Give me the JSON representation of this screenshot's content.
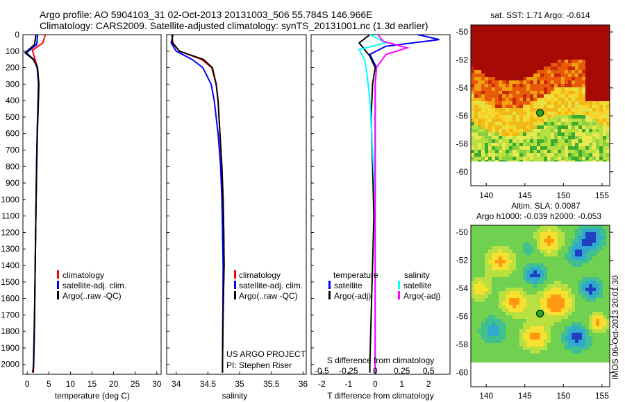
{
  "titles": {
    "line1": "Argo profile: AO 5904103_31 02-Oct-2013 20131003_506 55.784S 146.966E",
    "line2": "Climatology: CARS2009. Satellite-adjusted climatology: synTS_20131001.nc (1.3d earlier)"
  },
  "colors": {
    "climatology": "#ff0000",
    "satellite": "#0000ff",
    "argo": "#000000",
    "sat_salinity": "#00ffff",
    "argo_salinity": "#ff00ff",
    "marker": "#22aa22"
  },
  "depth_ticks": [
    "0",
    "100",
    "200",
    "300",
    "400",
    "500",
    "600",
    "700",
    "800",
    "900",
    "1000",
    "1100",
    "1200",
    "1300",
    "1400",
    "1500",
    "1600",
    "1700",
    "1800",
    "1900",
    "2000"
  ],
  "panel_temp": {
    "xlabel": "temperature (deg C)",
    "xticks": [
      "0",
      "5",
      "10",
      "15",
      "20",
      "25",
      "30"
    ],
    "legend": [
      "climatology",
      "satellite-adj. clim.",
      "Argo(..raw -QC)"
    ]
  },
  "panel_sal": {
    "xlabel": "salinity",
    "xticks": [
      "34",
      "34.5",
      "35",
      "35.5",
      "36"
    ],
    "legend": [
      "climatology",
      "satellite-adj. clim.",
      "Argo(..raw -QC)"
    ],
    "credit1": "US ARGO PROJECT",
    "credit2": "PI: Stephen Riser"
  },
  "panel_diff": {
    "xlabel": "T difference from climatology",
    "top_label": "S difference from climatology",
    "xticks_T": [
      "-2",
      "-1",
      "0",
      "1",
      "2"
    ],
    "xticks_S": [
      "-0.5",
      "-0.25",
      "0",
      "0.25",
      "0.5"
    ],
    "legend_left_title": "temperature",
    "legend_right_title": "salinity",
    "legend": [
      "satellite",
      "Argo(-adj)",
      "satellite",
      "Argo(-adj)"
    ]
  },
  "map_sst": {
    "title": "sat. SST: 1.71  Argo: -0.614",
    "yticks": [
      "-50",
      "-52",
      "-54",
      "-56",
      "-58",
      "-60"
    ],
    "xticks": [
      "140",
      "145",
      "150",
      "155"
    ]
  },
  "map_sla": {
    "title1": "Altim. SLA: 0.0087",
    "title2": "Argo h1000: -0.039  h2000: -0.053",
    "yticks": [
      "-50",
      "-52",
      "-54",
      "-56",
      "-58",
      "-60"
    ],
    "xticks": [
      "140",
      "145",
      "150",
      "155"
    ],
    "side_text": "IMOS 06-Oct-2013 20:01:30"
  },
  "chart_data": [
    {
      "type": "line",
      "panel": "temperature",
      "xlabel": "temperature (deg C)",
      "ylim": [
        2060,
        0
      ],
      "xlim": [
        -1,
        31
      ],
      "series": [
        {
          "name": "climatology",
          "x": [
            4.2,
            3.6,
            1.2,
            1.8,
            2.4,
            2.6,
            2.5,
            2.3,
            2.15,
            2.05,
            1.95,
            1.85,
            1.75,
            1.65,
            1.5,
            1.2
          ],
          "y": [
            0,
            50,
            95,
            150,
            200,
            300,
            400,
            600,
            800,
            1000,
            1200,
            1400,
            1600,
            1800,
            2000,
            2050
          ]
        },
        {
          "name": "satellite-adj. clim.",
          "x": [
            2.4,
            2.2,
            -0.2,
            1.5,
            2.3,
            2.6,
            2.5,
            2.3,
            2.15,
            2.05,
            1.95,
            1.85,
            1.75,
            1.65,
            1.5,
            1.4
          ],
          "y": [
            0,
            60,
            110,
            150,
            200,
            300,
            400,
            600,
            800,
            1000,
            1200,
            1400,
            1600,
            1800,
            2000,
            2050
          ]
        },
        {
          "name": "Argo(..raw -QC)",
          "x": [
            2.0,
            1.7,
            -0.5,
            1.4,
            2.4,
            2.7,
            2.6,
            2.35,
            2.2,
            2.05,
            1.95,
            1.85,
            1.75,
            1.6,
            1.45,
            1.4
          ],
          "y": [
            0,
            60,
            110,
            150,
            200,
            300,
            400,
            600,
            800,
            1000,
            1200,
            1400,
            1600,
            1800,
            2000,
            2050
          ]
        }
      ]
    },
    {
      "type": "line",
      "panel": "salinity",
      "xlabel": "salinity",
      "ylim": [
        2060,
        0
      ],
      "xlim": [
        33.85,
        36.05
      ],
      "series": [
        {
          "name": "climatology",
          "x": [
            33.93,
            33.95,
            34.05,
            34.4,
            34.56,
            34.63,
            34.66,
            34.69,
            34.72,
            34.74,
            34.75,
            34.755,
            34.735,
            34.73,
            34.73
          ],
          "y": [
            0,
            50,
            100,
            150,
            200,
            300,
            400,
            600,
            800,
            1000,
            1200,
            1400,
            1700,
            2000,
            2050
          ]
        },
        {
          "name": "satellite-adj. clim.",
          "x": [
            33.95,
            33.92,
            34.0,
            34.25,
            34.42,
            34.55,
            34.6,
            34.66,
            34.7,
            34.72,
            34.73,
            34.74,
            34.735,
            34.73,
            34.73
          ],
          "y": [
            0,
            50,
            100,
            150,
            200,
            300,
            400,
            600,
            800,
            1000,
            1200,
            1400,
            1700,
            2000,
            2050
          ]
        },
        {
          "name": "Argo(..raw -QC)",
          "x": [
            33.94,
            33.94,
            34.05,
            34.43,
            34.57,
            34.63,
            34.66,
            34.69,
            34.72,
            34.74,
            34.75,
            34.755,
            34.74,
            34.73,
            34.73
          ],
          "y": [
            0,
            50,
            100,
            150,
            200,
            300,
            400,
            600,
            800,
            1000,
            1200,
            1400,
            1700,
            2000,
            2050
          ]
        }
      ]
    },
    {
      "type": "line",
      "panel": "difference",
      "xlabel": "T difference from climatology",
      "ylim": [
        2060,
        0
      ],
      "xlim": [
        -2.4,
        2.8
      ],
      "series": [
        {
          "name": "temperature satellite",
          "x": [
            1.6,
            2.4,
            0.4,
            -0.2,
            0.05,
            0.0,
            0.0,
            0.0,
            0.0,
            0.0,
            0.0,
            0.0,
            0.0
          ],
          "y": [
            0,
            30,
            70,
            120,
            200,
            300,
            500,
            800,
            1100,
            1400,
            1700,
            2000,
            2050
          ]
        },
        {
          "name": "temperature Argo(-adj)",
          "x": [
            -0.2,
            -0.6,
            -0.4,
            -0.2,
            0.0,
            -0.1,
            -0.15,
            -0.1,
            -0.05,
            -0.1,
            -0.15,
            -0.2,
            -0.2
          ],
          "y": [
            0,
            50,
            90,
            130,
            200,
            300,
            500,
            800,
            1100,
            1400,
            1700,
            2000,
            2050
          ]
        },
        {
          "name": "salinity satellite",
          "x": [
            -0.2,
            0.4,
            -0.6,
            -0.4,
            -0.3,
            -0.2,
            -0.1,
            0.0,
            0.0,
            0.0,
            0.0,
            0.0,
            0.0
          ],
          "y": [
            0,
            50,
            90,
            150,
            250,
            400,
            700,
            1000,
            1200,
            1400,
            1700,
            2000,
            2050
          ]
        },
        {
          "name": "salinity Argo(-adj)",
          "x": [
            0.1,
            0.3,
            1.2,
            0.4,
            0.05,
            0.0,
            0.0,
            0.0,
            0.0,
            0.0,
            0.0,
            0.0,
            0.0
          ],
          "y": [
            0,
            40,
            80,
            120,
            200,
            300,
            500,
            800,
            1100,
            1400,
            1700,
            2000,
            2050
          ]
        }
      ]
    },
    {
      "type": "heatmap",
      "panel": "sat. SST map",
      "xlim": [
        138,
        156
      ],
      "ylim": [
        -61,
        -49.5
      ],
      "marker": {
        "lon": 146.966,
        "lat": -55.784
      }
    },
    {
      "type": "heatmap",
      "panel": "Altim. SLA map",
      "xlim": [
        138,
        156
      ],
      "ylim": [
        -61,
        -49.5
      ],
      "marker": {
        "lon": 146.966,
        "lat": -55.784
      }
    }
  ]
}
